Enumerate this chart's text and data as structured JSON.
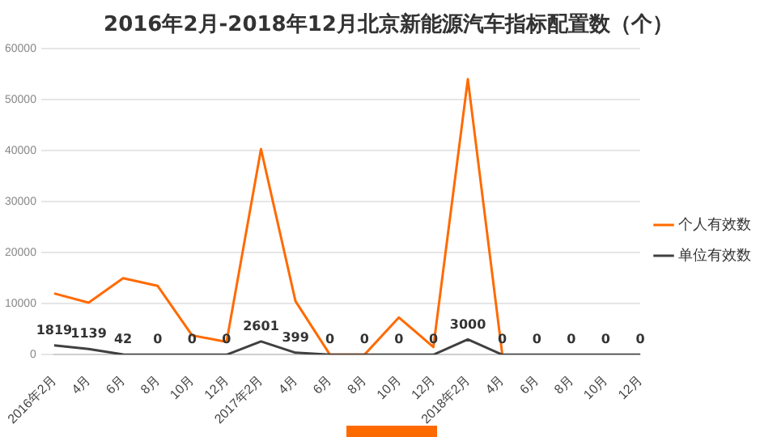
{
  "chart_data": {
    "type": "line",
    "title": "2016年2月-2018年12月北京新能源汽车指标配置数（个）",
    "categories": [
      "2016年2月",
      "4月",
      "6月",
      "8月",
      "10月",
      "12月",
      "2017年2月",
      "4月",
      "6月",
      "8月",
      "10月",
      "12月",
      "2018年2月",
      "4月",
      "6月",
      "8月",
      "10月",
      "12月"
    ],
    "series": [
      {
        "name": "个人有效数",
        "color": "#ff6a00",
        "values": [
          12000,
          10200,
          15000,
          13500,
          3800,
          2500,
          40300,
          10500,
          0,
          0,
          7300,
          1500,
          54000,
          0,
          null,
          null,
          null,
          null
        ]
      },
      {
        "name": "单位有效数",
        "color": "#404040",
        "values": [
          1819,
          1139,
          42,
          0,
          0,
          0,
          2601,
          399,
          0,
          0,
          0,
          0,
          3000,
          0,
          0,
          0,
          0,
          0
        ],
        "value_labels": [
          "1819",
          "1139",
          "42",
          "0",
          "0",
          "0",
          "2601",
          "399",
          "0",
          "0",
          "0",
          "0",
          "3000",
          "0",
          "0",
          "0",
          "0",
          "0"
        ]
      }
    ],
    "ylim": [
      0,
      60000
    ],
    "yticks": [
      0,
      10000,
      20000,
      30000,
      40000,
      50000,
      60000
    ],
    "grid": "y",
    "legend": "right",
    "marker": "none",
    "line_style": "solid"
  }
}
